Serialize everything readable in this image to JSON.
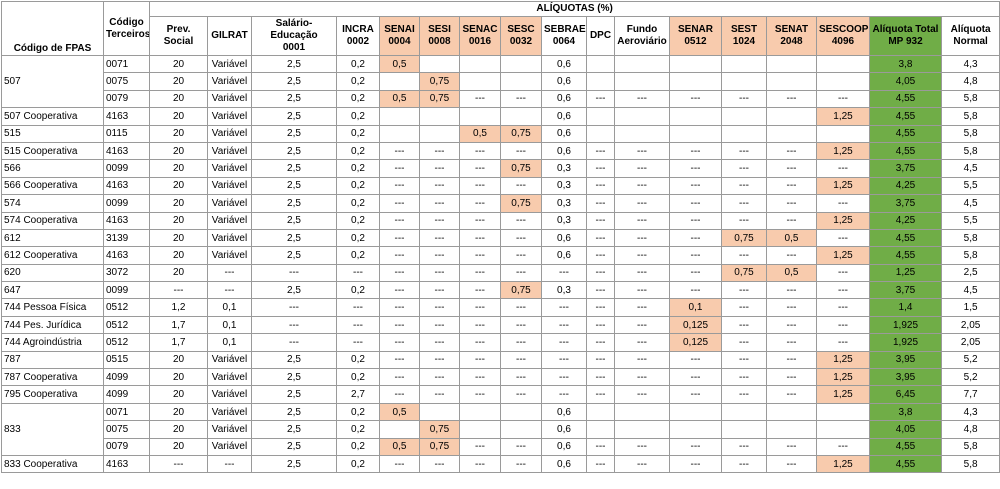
{
  "header": {
    "title": "ALÍQUOTAS (%)"
  },
  "columns": [
    {
      "label": "Código de FPAS"
    },
    {
      "label": "Código Terceiros"
    },
    {
      "label": "Prev. Social"
    },
    {
      "label": "GILRAT"
    },
    {
      "label": "Salário- Educação",
      "code": "0001"
    },
    {
      "label": "INCRA",
      "code": "0002"
    },
    {
      "label": "SENAI",
      "code": "0004",
      "color": "#f8cbad"
    },
    {
      "label": "SESI",
      "code": "0008",
      "color": "#f8cbad"
    },
    {
      "label": "SENAC",
      "code": "0016",
      "color": "#f8cbad"
    },
    {
      "label": "SESC",
      "code": "0032",
      "color": "#f8cbad"
    },
    {
      "label": "SEBRAE",
      "code": "0064"
    },
    {
      "label": "DPC"
    },
    {
      "label": "Fundo Aeroviário"
    },
    {
      "label": "SENAR",
      "code": "0512",
      "color": "#f8cbad"
    },
    {
      "label": "SEST",
      "code": "1024",
      "color": "#f8cbad"
    },
    {
      "label": "SENAT",
      "code": "2048",
      "color": "#f8cbad"
    },
    {
      "label": "SESCOOP",
      "code": "4096",
      "color": "#f8cbad"
    },
    {
      "label": "Alíquota Total",
      "code": "MP 932",
      "color": "#70ad47"
    },
    {
      "label": "Alíquota Normal"
    }
  ],
  "rows": [
    {
      "fpas": "507",
      "cells": [
        "0071",
        "20",
        "Variável",
        "2,5",
        "0,2",
        "0,5",
        null,
        null,
        null,
        "0,6",
        null,
        null,
        null,
        null,
        null,
        null,
        "3,8",
        "4,3"
      ]
    },
    {
      "fpas": null,
      "cells": [
        "0075",
        "20",
        "Variável",
        "2,5",
        "0,2",
        null,
        "0,75",
        null,
        null,
        "0,6",
        null,
        null,
        null,
        null,
        null,
        null,
        "4,05",
        "4,8"
      ]
    },
    {
      "fpas": null,
      "cells": [
        "0079",
        "20",
        "Variável",
        "2,5",
        "0,2",
        "0,5",
        "0,75",
        "---",
        "---",
        "0,6",
        "---",
        "---",
        "---",
        "---",
        "---",
        "---",
        "4,55",
        "5,8"
      ]
    },
    {
      "fpas": "507 Cooperativa",
      "cells": [
        "4163",
        "20",
        "Variável",
        "2,5",
        "0,2",
        null,
        null,
        null,
        null,
        "0,6",
        null,
        null,
        null,
        null,
        null,
        "1,25",
        "4,55",
        "5,8"
      ]
    },
    {
      "fpas": "515",
      "cells": [
        "0115",
        "20",
        "Variável",
        "2,5",
        "0,2",
        null,
        null,
        "0,5",
        "0,75",
        "0,6",
        null,
        null,
        null,
        null,
        null,
        null,
        "4,55",
        "5,8"
      ]
    },
    {
      "fpas": "515 Cooperativa",
      "cells": [
        "4163",
        "20",
        "Variável",
        "2,5",
        "0,2",
        "---",
        "---",
        "---",
        "---",
        "0,6",
        "---",
        "---",
        "---",
        "---",
        "---",
        "1,25",
        "4,55",
        "5,8"
      ]
    },
    {
      "fpas": "566",
      "cells": [
        "0099",
        "20",
        "Variável",
        "2,5",
        "0,2",
        "---",
        "---",
        "---",
        "0,75",
        "0,3",
        "---",
        "---",
        "---",
        "---",
        "---",
        "---",
        "3,75",
        "4,5"
      ]
    },
    {
      "fpas": "566 Cooperativa",
      "cells": [
        "4163",
        "20",
        "Variável",
        "2,5",
        "0,2",
        "---",
        "---",
        "---",
        "---",
        "0,3",
        "---",
        "---",
        "---",
        "---",
        "---",
        "1,25",
        "4,25",
        "5,5"
      ]
    },
    {
      "fpas": "574",
      "cells": [
        "0099",
        "20",
        "Variável",
        "2,5",
        "0,2",
        "---",
        "---",
        "---",
        "0,75",
        "0,3",
        "---",
        "---",
        "---",
        "---",
        "---",
        "---",
        "3,75",
        "4,5"
      ]
    },
    {
      "fpas": "574 Cooperativa",
      "cells": [
        "4163",
        "20",
        "Variável",
        "2,5",
        "0,2",
        "---",
        "---",
        "---",
        "---",
        "0,3",
        "---",
        "---",
        "---",
        "---",
        "---",
        "1,25",
        "4,25",
        "5,5"
      ]
    },
    {
      "fpas": "612",
      "cells": [
        "3139",
        "20",
        "Variável",
        "2,5",
        "0,2",
        "---",
        "---",
        "---",
        "---",
        "0,6",
        "---",
        "---",
        "---",
        "0,75",
        "0,5",
        "---",
        "4,55",
        "5,8"
      ]
    },
    {
      "fpas": "612 Cooperativa",
      "cells": [
        "4163",
        "20",
        "Variável",
        "2,5",
        "0,2",
        "---",
        "---",
        "---",
        "---",
        "0,6",
        "---",
        "---",
        "---",
        "---",
        "---",
        "1,25",
        "4,55",
        "5,8"
      ]
    },
    {
      "fpas": "620",
      "cells": [
        "3072",
        "20",
        "---",
        "---",
        "---",
        "---",
        "---",
        "---",
        "---",
        "---",
        "---",
        "---",
        "---",
        "0,75",
        "0,5",
        "---",
        "1,25",
        "2,5"
      ]
    },
    {
      "fpas": "647",
      "cells": [
        "0099",
        "---",
        "---",
        "2,5",
        "0,2",
        "---",
        "---",
        "---",
        "0,75",
        "0,3",
        "---",
        "---",
        "---",
        "---",
        "---",
        "---",
        "3,75",
        "4,5"
      ]
    },
    {
      "fpas": "744 Pessoa Física",
      "cells": [
        "0512",
        "1,2",
        "0,1",
        "---",
        "---",
        "---",
        "---",
        "---",
        "---",
        "---",
        "---",
        "---",
        "0,1",
        "---",
        "---",
        "---",
        "1,4",
        "1,5"
      ]
    },
    {
      "fpas": "744 Pes. Jurídica",
      "cells": [
        "0512",
        "1,7",
        "0,1",
        "---",
        "---",
        "---",
        "---",
        "---",
        "---",
        "---",
        "---",
        "---",
        "0,125",
        "---",
        "---",
        "---",
        "1,925",
        "2,05"
      ]
    },
    {
      "fpas": "744 Agroindústria",
      "cells": [
        "0512",
        "1,7",
        "0,1",
        "---",
        "---",
        "---",
        "---",
        "---",
        "---",
        "---",
        "---",
        "---",
        "0,125",
        "---",
        "---",
        "---",
        "1,925",
        "2,05"
      ]
    },
    {
      "fpas": "787",
      "cells": [
        "0515",
        "20",
        "Variável",
        "2,5",
        "0,2",
        "---",
        "---",
        "---",
        "---",
        "---",
        "---",
        "---",
        "---",
        "---",
        "---",
        "1,25",
        "3,95",
        "5,2"
      ]
    },
    {
      "fpas": "787 Cooperativa",
      "cells": [
        "4099",
        "20",
        "Variável",
        "2,5",
        "0,2",
        "---",
        "---",
        "---",
        "---",
        "---",
        "---",
        "---",
        "---",
        "---",
        "---",
        "1,25",
        "3,95",
        "5,2"
      ]
    },
    {
      "fpas": "795 Cooperativa",
      "cells": [
        "4099",
        "20",
        "Variável",
        "2,5",
        "2,7",
        "---",
        "---",
        "---",
        "---",
        "---",
        "---",
        "---",
        "---",
        "---",
        "---",
        "1,25",
        "6,45",
        "7,7"
      ]
    },
    {
      "fpas": "833",
      "cells": [
        "0071",
        "20",
        "Variável",
        "2,5",
        "0,2",
        "0,5",
        null,
        null,
        null,
        "0,6",
        null,
        null,
        null,
        null,
        null,
        null,
        "3,8",
        "4,3"
      ]
    },
    {
      "fpas": null,
      "cells": [
        "0075",
        "20",
        "Variável",
        "2,5",
        "0,2",
        null,
        "0,75",
        null,
        null,
        "0,6",
        null,
        null,
        null,
        null,
        null,
        null,
        "4,05",
        "4,8"
      ]
    },
    {
      "fpas": null,
      "cells": [
        "0079",
        "20",
        "Variável",
        "2,5",
        "0,2",
        "0,5",
        "0,75",
        "---",
        "---",
        "0,6",
        "---",
        "---",
        "---",
        "---",
        "---",
        "---",
        "4,55",
        "5,8"
      ]
    },
    {
      "fpas": "833 Cooperativa",
      "cells": [
        "4163",
        "---",
        "---",
        "2,5",
        "0,2",
        "---",
        "---",
        "---",
        "---",
        "0,6",
        "---",
        "---",
        "---",
        "---",
        "---",
        "1,25",
        "4,55",
        "5,8"
      ]
    }
  ]
}
